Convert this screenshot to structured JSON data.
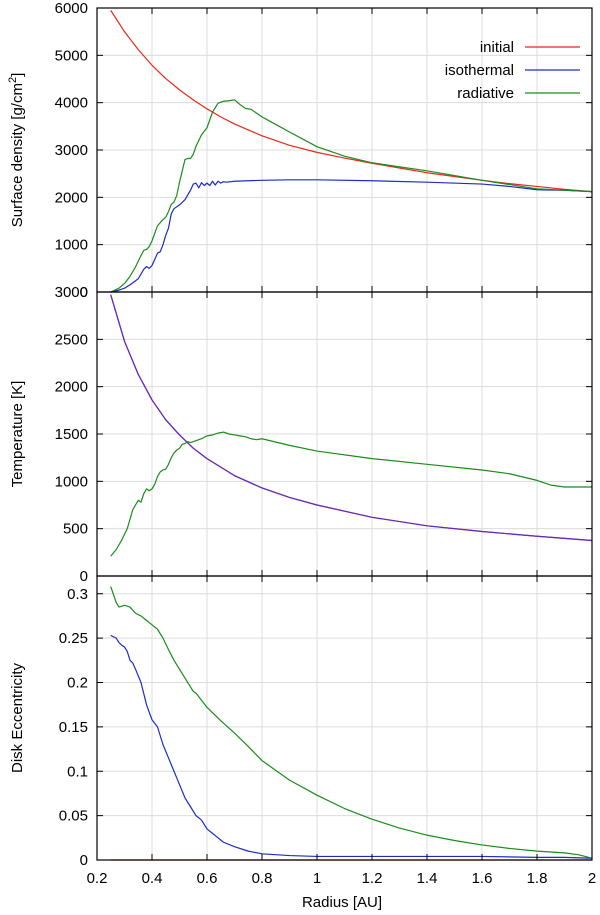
{
  "chart_data": {
    "type": "line",
    "xlabel": "Radius [AU]",
    "xlim": [
      0.2,
      2.0
    ],
    "xticks": [
      "0.2",
      "0.4",
      "0.6",
      "0.8",
      "1",
      "1.2",
      "1.4",
      "1.6",
      "1.8",
      "2"
    ],
    "legend": {
      "position": "top-right",
      "entries": [
        {
          "name": "initial",
          "color": "#e8281c"
        },
        {
          "name": "isothermal",
          "color": "#1c2cc8"
        },
        {
          "name": "radiative",
          "color": "#1a8c1a"
        }
      ]
    },
    "panels": [
      {
        "ylabel": "Surface density [g/cm",
        "ylabel_sup": "2",
        "ylabel_end": "]",
        "ylim": [
          0,
          6000
        ],
        "yticks": [
          "0",
          "1000",
          "2000",
          "3000",
          "4000",
          "5000",
          "6000"
        ],
        "series": [
          {
            "name": "initial",
            "color": "#e8281c",
            "x": [
              0.25,
              0.3,
              0.35,
              0.4,
              0.45,
              0.5,
              0.55,
              0.6,
              0.65,
              0.7,
              0.8,
              0.9,
              1.0,
              1.1,
              1.2,
              1.3,
              1.4,
              1.5,
              1.6,
              1.7,
              1.8,
              1.9,
              2.0
            ],
            "y": [
              5950,
              5500,
              5120,
              4790,
              4510,
              4270,
              4060,
              3870,
              3700,
              3550,
              3300,
              3100,
              2950,
              2830,
              2720,
              2620,
              2520,
              2440,
              2360,
              2290,
              2230,
              2170,
              2120
            ]
          },
          {
            "name": "isothermal",
            "color": "#1c2cc8",
            "x": [
              0.25,
              0.28,
              0.3,
              0.32,
              0.35,
              0.37,
              0.38,
              0.39,
              0.4,
              0.42,
              0.43,
              0.44,
              0.45,
              0.46,
              0.47,
              0.48,
              0.5,
              0.52,
              0.54,
              0.55,
              0.56,
              0.57,
              0.58,
              0.59,
              0.6,
              0.61,
              0.62,
              0.63,
              0.64,
              0.65,
              0.66,
              0.67,
              0.7,
              0.8,
              0.9,
              1.0,
              1.2,
              1.4,
              1.6,
              1.7,
              1.8,
              1.9,
              2.0
            ],
            "y": [
              0,
              40,
              80,
              150,
              280,
              480,
              540,
              500,
              560,
              820,
              850,
              1000,
              1200,
              1350,
              1650,
              1760,
              1840,
              1950,
              2150,
              2280,
              2300,
              2200,
              2310,
              2250,
              2300,
              2250,
              2340,
              2260,
              2340,
              2300,
              2330,
              2320,
              2340,
              2360,
              2370,
              2370,
              2350,
              2320,
              2280,
              2230,
              2160,
              2150,
              2120
            ]
          },
          {
            "name": "radiative",
            "color": "#1a8c1a",
            "x": [
              0.25,
              0.28,
              0.3,
              0.32,
              0.34,
              0.36,
              0.37,
              0.38,
              0.39,
              0.4,
              0.42,
              0.44,
              0.45,
              0.46,
              0.47,
              0.48,
              0.49,
              0.5,
              0.52,
              0.53,
              0.54,
              0.55,
              0.56,
              0.57,
              0.58,
              0.6,
              0.62,
              0.64,
              0.66,
              0.68,
              0.7,
              0.72,
              0.74,
              0.76,
              0.78,
              0.8,
              0.85,
              0.9,
              1.0,
              1.1,
              1.2,
              1.4,
              1.6,
              1.8,
              2.0
            ],
            "y": [
              0,
              80,
              180,
              330,
              530,
              770,
              880,
              900,
              960,
              1080,
              1400,
              1530,
              1580,
              1700,
              1850,
              1900,
              2040,
              2320,
              2800,
              2820,
              2820,
              2910,
              3080,
              3200,
              3320,
              3470,
              3800,
              3990,
              4030,
              4040,
              4060,
              3960,
              3880,
              3860,
              3780,
              3700,
              3540,
              3380,
              3070,
              2870,
              2730,
              2560,
              2360,
              2180,
              2120
            ]
          }
        ]
      },
      {
        "ylabel": "Temperature [K]",
        "ylim": [
          0,
          3000
        ],
        "yticks": [
          "0",
          "500",
          "1000",
          "1500",
          "2000",
          "2500",
          "3000"
        ],
        "series": [
          {
            "name": "initial",
            "color": "#e8281c",
            "x": [
              0.25,
              0.3,
              0.35,
              0.4,
              0.45,
              0.5,
              0.55,
              0.6,
              0.7,
              0.8,
              0.9,
              1.0,
              1.2,
              1.4,
              1.6,
              1.8,
              2.0
            ],
            "y": [
              2970,
              2480,
              2130,
              1860,
              1650,
              1490,
              1350,
              1240,
              1060,
              930,
              830,
              750,
              620,
              530,
              470,
              420,
              375
            ]
          },
          {
            "name": "isothermal",
            "color": "#5a2cc8",
            "x": [
              0.25,
              0.3,
              0.35,
              0.4,
              0.45,
              0.5,
              0.55,
              0.6,
              0.7,
              0.8,
              0.9,
              1.0,
              1.2,
              1.4,
              1.6,
              1.8,
              2.0
            ],
            "y": [
              2970,
              2480,
              2130,
              1860,
              1650,
              1490,
              1350,
              1240,
              1060,
              930,
              830,
              750,
              620,
              530,
              470,
              420,
              375
            ]
          },
          {
            "name": "radiative",
            "color": "#1a8c1a",
            "x": [
              0.25,
              0.27,
              0.29,
              0.31,
              0.33,
              0.35,
              0.36,
              0.37,
              0.38,
              0.39,
              0.4,
              0.41,
              0.42,
              0.43,
              0.44,
              0.45,
              0.46,
              0.47,
              0.48,
              0.49,
              0.5,
              0.51,
              0.52,
              0.53,
              0.54,
              0.56,
              0.58,
              0.6,
              0.62,
              0.64,
              0.66,
              0.68,
              0.7,
              0.72,
              0.74,
              0.76,
              0.78,
              0.8,
              0.9,
              1.0,
              1.2,
              1.4,
              1.6,
              1.7,
              1.8,
              1.85,
              1.9,
              2.0
            ],
            "y": [
              210,
              280,
              380,
              500,
              700,
              800,
              780,
              870,
              920,
              900,
              920,
              970,
              1050,
              1100,
              1120,
              1130,
              1180,
              1250,
              1300,
              1330,
              1350,
              1390,
              1400,
              1420,
              1410,
              1430,
              1450,
              1480,
              1490,
              1510,
              1520,
              1500,
              1490,
              1480,
              1470,
              1450,
              1440,
              1450,
              1380,
              1320,
              1240,
              1180,
              1120,
              1080,
              1010,
              960,
              940,
              940
            ]
          }
        ]
      },
      {
        "ylabel": "Disk Eccentricity",
        "ylim": [
          0,
          0.32
        ],
        "yticks": [
          "0",
          "0.05",
          "0.1",
          "0.15",
          "0.2",
          "0.25",
          "0.3"
        ],
        "yticks_values": [
          0,
          0.05,
          0.1,
          0.15,
          0.2,
          0.25,
          0.3
        ],
        "series": [
          {
            "name": "initial",
            "color": "#e8281c",
            "x": [
              0.25,
              2.0
            ],
            "y": [
              0,
              0
            ]
          },
          {
            "name": "isothermal",
            "color": "#1c2cc8",
            "x": [
              0.25,
              0.27,
              0.28,
              0.29,
              0.3,
              0.31,
              0.32,
              0.33,
              0.34,
              0.36,
              0.38,
              0.4,
              0.42,
              0.44,
              0.46,
              0.48,
              0.5,
              0.52,
              0.54,
              0.56,
              0.58,
              0.6,
              0.62,
              0.64,
              0.66,
              0.7,
              0.75,
              0.8,
              0.9,
              1.0,
              1.1,
              1.2,
              1.4,
              1.6,
              1.8,
              1.9,
              2.0
            ],
            "y": [
              0.253,
              0.25,
              0.245,
              0.242,
              0.24,
              0.235,
              0.225,
              0.222,
              0.215,
              0.2,
              0.175,
              0.158,
              0.15,
              0.13,
              0.115,
              0.1,
              0.085,
              0.07,
              0.06,
              0.05,
              0.045,
              0.035,
              0.03,
              0.025,
              0.02,
              0.015,
              0.01,
              0.007,
              0.005,
              0.004,
              0.004,
              0.004,
              0.004,
              0.004,
              0.003,
              0.003,
              0.002
            ]
          },
          {
            "name": "radiative",
            "color": "#1a8c1a",
            "x": [
              0.25,
              0.27,
              0.28,
              0.3,
              0.32,
              0.34,
              0.36,
              0.38,
              0.4,
              0.42,
              0.44,
              0.46,
              0.48,
              0.5,
              0.52,
              0.54,
              0.55,
              0.56,
              0.58,
              0.6,
              0.65,
              0.7,
              0.75,
              0.8,
              0.9,
              1.0,
              1.1,
              1.2,
              1.3,
              1.4,
              1.5,
              1.6,
              1.7,
              1.8,
              1.9,
              1.95,
              2.0
            ],
            "y": [
              0.308,
              0.29,
              0.285,
              0.287,
              0.285,
              0.278,
              0.275,
              0.27,
              0.265,
              0.26,
              0.25,
              0.237,
              0.225,
              0.215,
              0.205,
              0.195,
              0.19,
              0.188,
              0.18,
              0.172,
              0.157,
              0.143,
              0.128,
              0.112,
              0.09,
              0.073,
              0.058,
              0.046,
              0.036,
              0.028,
              0.022,
              0.017,
              0.013,
              0.01,
              0.008,
              0.006,
              0.002
            ]
          }
        ]
      }
    ]
  }
}
